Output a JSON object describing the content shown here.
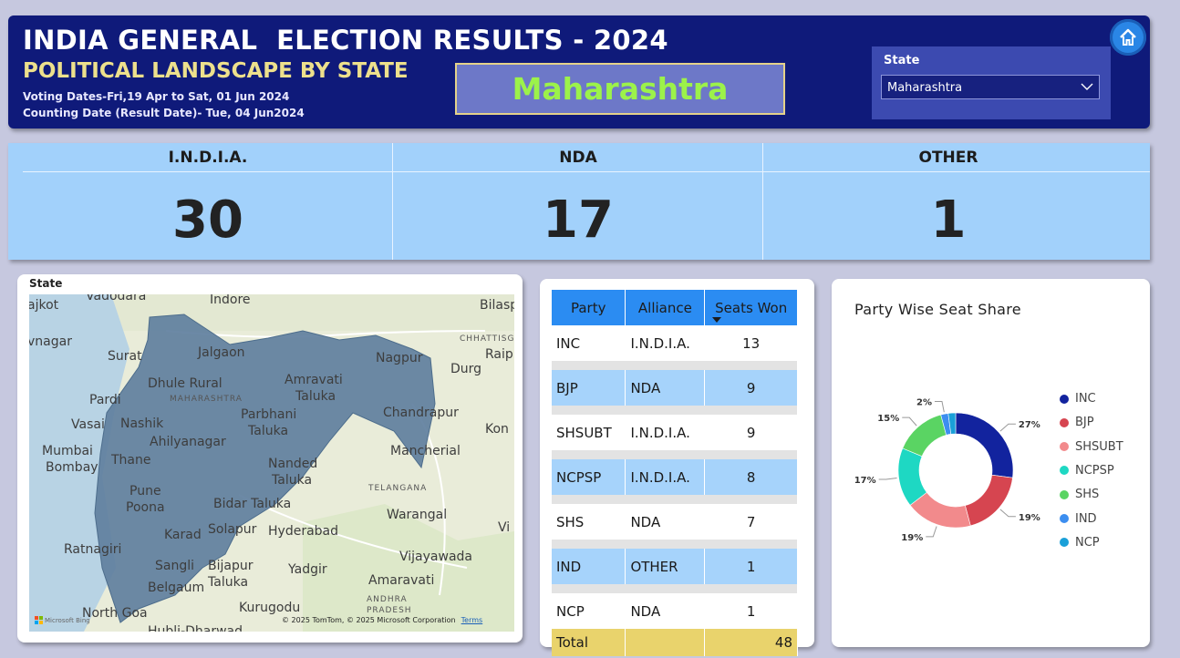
{
  "header": {
    "title": "INDIA GENERAL  ELECTION RESULTS - 2024",
    "subtitle": "POLITICAL LANDSCAPE BY STATE",
    "voting_dates": "Voting Dates-Fri,19 Apr to Sat, 01 Jun 2024",
    "counting_date": "Counting Date (Result Date)- Tue, 04 Jun2024",
    "selected_state": "Maharashtra",
    "home_icon": "home-icon"
  },
  "slicer": {
    "label": "State",
    "value": "Maharashtra",
    "icon": "chevron-down-icon"
  },
  "kpis": [
    {
      "label": "I.N.D.I.A.",
      "value": "30"
    },
    {
      "label": "NDA",
      "value": "17"
    },
    {
      "label": "OTHER",
      "value": "1"
    }
  ],
  "map": {
    "title": "State",
    "labels": [
      "Vadodara",
      "Indore",
      "Bilasp",
      "ajkot",
      "vnagar",
      "Jalgaon",
      "Nagpur",
      "CHHATTISG",
      "Raip",
      "Surat",
      "Dhule Rural",
      "Amravati",
      "Taluka",
      "Durg",
      "Pardi",
      "MAHARASHTRA",
      "Chandrapur",
      "Vasai",
      "Nashik",
      "Parbhani",
      "Taluka",
      "Kon",
      "Ahilyanagar",
      "Mumbai",
      "Bombay",
      "Mancherial",
      "Thane",
      "Nanded",
      "Taluka",
      "TELANGANA",
      "Pune",
      "Poona",
      "Bidar Taluka",
      "Warangal",
      "Karad",
      "Solapur",
      "Hyderabad",
      "Vi",
      "Ratnagiri",
      "Vijayawada",
      "Sangli",
      "Bijapur",
      "Taluka",
      "Yadgir",
      "Belgaum",
      "Amaravati",
      "ANDHRA",
      "PRADESH",
      "North Goa",
      "Kurugodu",
      "Hubli-Dharwad"
    ],
    "attribution": "© 2025 TomTom, © 2025 Microsoft Corporation",
    "terms": "Terms",
    "bing": "Microsoft Bing"
  },
  "table": {
    "headers": [
      "Party",
      "Alliance",
      "Seats Won"
    ],
    "rows": [
      {
        "party": "INC",
        "alliance": "I.N.D.I.A.",
        "seats": "13"
      },
      {
        "party": "BJP",
        "alliance": "NDA",
        "seats": "9"
      },
      {
        "party": "SHSUBT",
        "alliance": "I.N.D.I.A.",
        "seats": "9"
      },
      {
        "party": "NCPSP",
        "alliance": "I.N.D.I.A.",
        "seats": "8"
      },
      {
        "party": "SHS",
        "alliance": "NDA",
        "seats": "7"
      },
      {
        "party": "IND",
        "alliance": "OTHER",
        "seats": "1"
      },
      {
        "party": "NCP",
        "alliance": "NDA",
        "seats": "1"
      }
    ],
    "total_label": "Total",
    "total_value": "48"
  },
  "chart_data": {
    "type": "pie",
    "title": "Party Wise Seat Share",
    "legend_placement": "right",
    "categories": [
      "INC",
      "BJP",
      "SHSUBT",
      "NCPSP",
      "SHS",
      "IND",
      "NCP"
    ],
    "values": [
      13,
      9,
      9,
      8,
      7,
      1,
      1
    ],
    "percent_labels": [
      "27%",
      "19%",
      "19%",
      "17%",
      "15%",
      "2%",
      ""
    ],
    "colors": [
      "#12239e",
      "#d64550",
      "#f28a8c",
      "#1ed8c3",
      "#5ad463",
      "#3c8ef0",
      "#1aa0d8"
    ]
  }
}
